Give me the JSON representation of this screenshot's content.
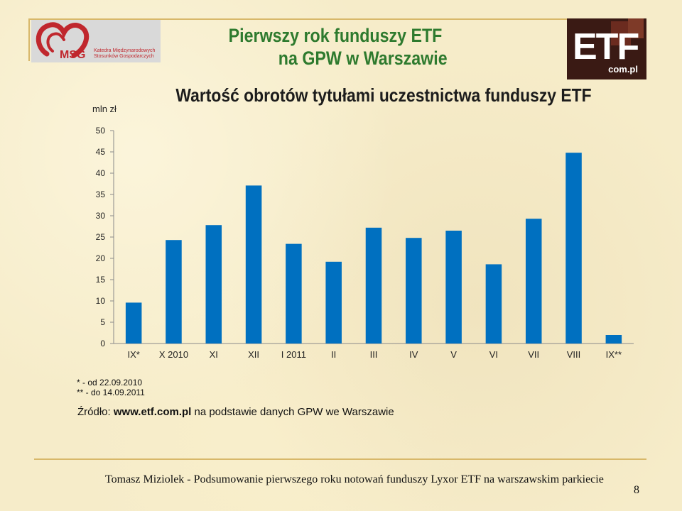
{
  "header": {
    "title_line1": "Pierwszy rok funduszy ETF",
    "title_line2": "na GPW w Warszawie",
    "logo_left": {
      "name": "MSG",
      "subtitle_line1": "Katedra Międzynarodowych",
      "subtitle_line2": "Stosunków Gospodarczych"
    },
    "logo_right": {
      "name": "ETF",
      "domain": "com.pl"
    }
  },
  "chart_data": {
    "type": "bar",
    "title": "Wartość obrotów tytułami uczestnictwa funduszy ETF",
    "ylabel": "mln zł",
    "xlabel": "",
    "ylim": [
      0,
      50
    ],
    "yticks": [
      0,
      5,
      10,
      15,
      20,
      25,
      30,
      35,
      40,
      45,
      50
    ],
    "categories": [
      "IX*",
      "X 2010",
      "XI",
      "XII",
      "I 2011",
      "II",
      "III",
      "IV",
      "V",
      "VI",
      "VII",
      "VIII",
      "IX**"
    ],
    "values": [
      9.6,
      24.3,
      27.8,
      37.1,
      23.4,
      19.2,
      27.2,
      24.8,
      26.5,
      18.6,
      29.3,
      44.8,
      2.0
    ],
    "grid": false,
    "legend": "none",
    "bar_color": "#0070c0"
  },
  "notes": {
    "note1": "* - od 22.09.2010",
    "note2": "** - do 14.09.2011"
  },
  "source": {
    "prefix": "Źródło: ",
    "link": "www.etf.com.pl",
    "suffix": " na podstawie danych GPW we Warszawie"
  },
  "footer": {
    "text": "Tomasz Miziolek - Podsumowanie pierwszego roku notowań funduszy Lyxor ETF na warszawskim parkiecie",
    "page_number": "8"
  }
}
